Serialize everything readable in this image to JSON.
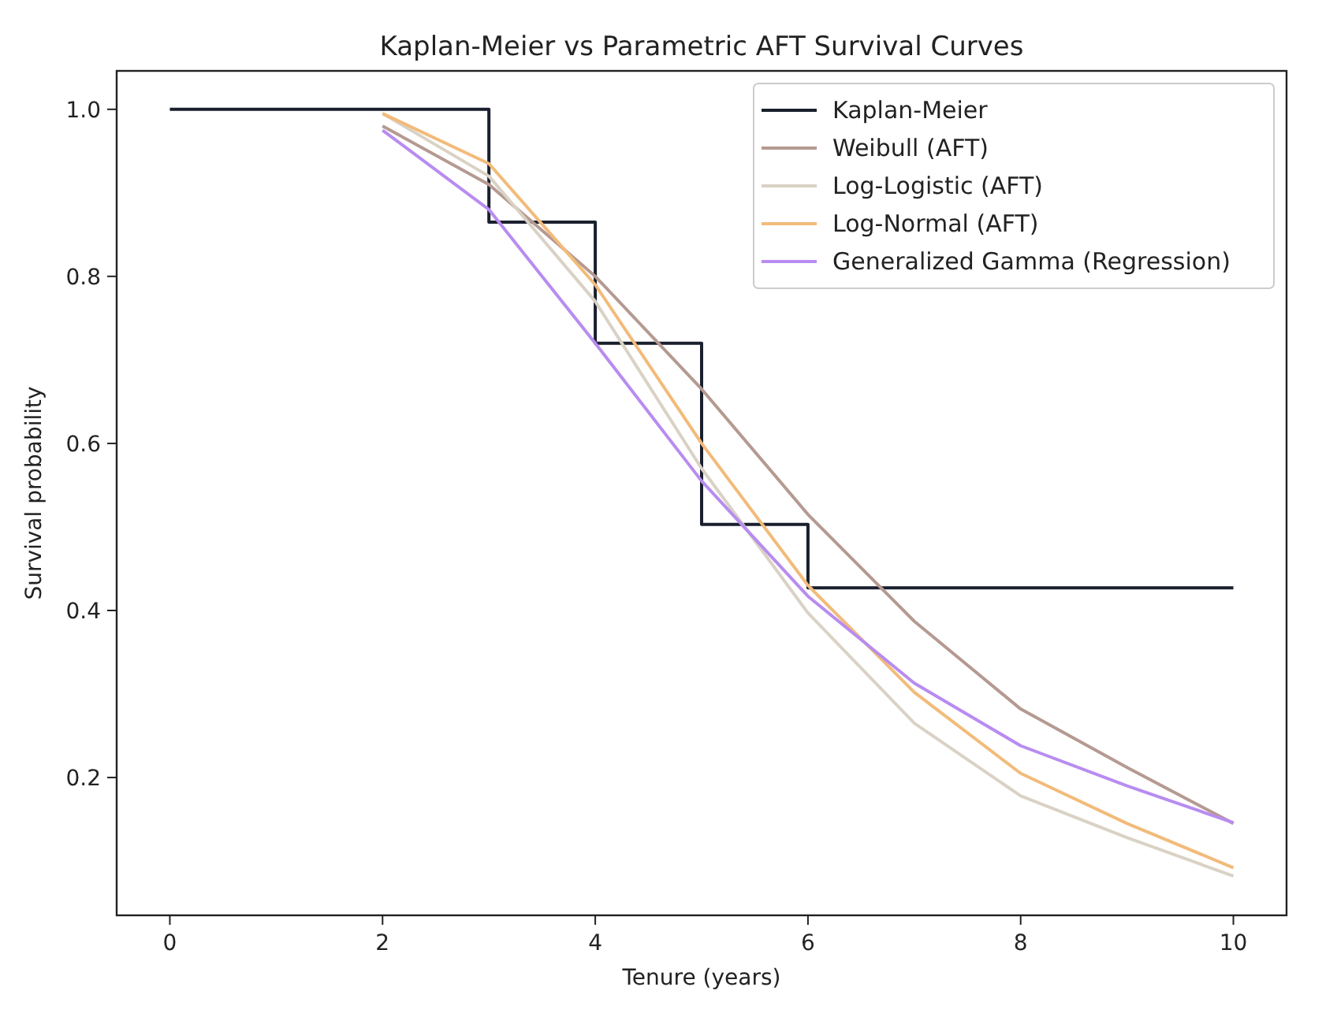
{
  "chart_data": {
    "type": "line",
    "title": "Kaplan-Meier vs Parametric AFT Survival Curves",
    "xlabel": "Tenure (years)",
    "ylabel": "Survival probability",
    "xlim": [
      -0.5,
      10.5
    ],
    "xticks": [
      0,
      2,
      4,
      6,
      8,
      10
    ],
    "ylim": [
      0.035,
      1.046
    ],
    "yticks": [
      {
        "value": 0.2,
        "label": "0.2"
      },
      {
        "value": 0.4,
        "label": "0.4"
      },
      {
        "value": 0.6,
        "label": "0.6"
      },
      {
        "value": 0.8,
        "label": "0.8"
      },
      {
        "value": 1.0,
        "label": "1.0"
      }
    ],
    "grid": false,
    "legend": "top right",
    "series": [
      {
        "name": "Kaplan-Meier",
        "type": "step",
        "color": "#1a1f2e",
        "x": [
          0,
          3,
          4,
          5,
          6,
          10
        ],
        "values": [
          1.0,
          0.865,
          0.72,
          0.503,
          0.427,
          0.427
        ]
      },
      {
        "name": "Weibull (AFT)",
        "color": "#b59a92",
        "x": [
          2,
          3,
          4,
          5,
          6,
          7,
          8,
          9,
          10
        ],
        "values": [
          0.98,
          0.91,
          0.8,
          0.665,
          0.515,
          0.387,
          0.282,
          0.212,
          0.145
        ]
      },
      {
        "name": "Log-Logistic (AFT)",
        "color": "#d9d2c5",
        "x": [
          2,
          3,
          4,
          5,
          6,
          7,
          8,
          9,
          10
        ],
        "values": [
          0.995,
          0.92,
          0.77,
          0.57,
          0.397,
          0.265,
          0.178,
          0.128,
          0.082
        ]
      },
      {
        "name": "Log-Normal (AFT)",
        "color": "#f2bb7a",
        "x": [
          2,
          3,
          4,
          5,
          6,
          7,
          8,
          9,
          10
        ],
        "values": [
          0.995,
          0.935,
          0.79,
          0.6,
          0.43,
          0.302,
          0.205,
          0.145,
          0.092
        ]
      },
      {
        "name": "Generalized Gamma (Regression)",
        "color": "#b88cf0",
        "x": [
          2,
          3,
          4,
          5,
          6,
          7,
          8,
          9,
          10
        ],
        "values": [
          0.975,
          0.88,
          0.72,
          0.555,
          0.417,
          0.313,
          0.238,
          0.19,
          0.146
        ]
      }
    ]
  }
}
